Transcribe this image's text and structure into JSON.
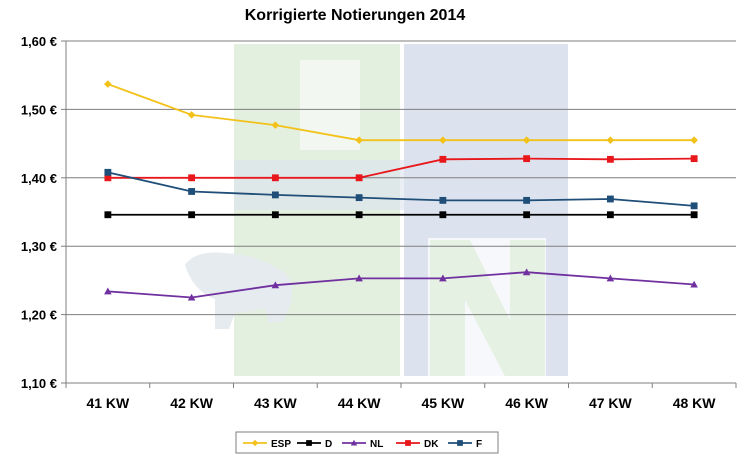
{
  "chart_data": {
    "type": "line",
    "title": "Korrigierte Notierungen 2014",
    "xlabel": "",
    "ylabel": "",
    "categories": [
      "41 KW",
      "42 KW",
      "43 KW",
      "44 KW",
      "45 KW",
      "46 KW",
      "47 KW",
      "48 KW"
    ],
    "ylim": [
      1.1,
      1.6
    ],
    "yticks": [
      1.1,
      1.2,
      1.3,
      1.4,
      1.5,
      1.6
    ],
    "ytick_labels": [
      "1,10 €",
      "1,20 €",
      "1,30 €",
      "1,40 €",
      "1,50 €",
      "1,60 €"
    ],
    "grid": true,
    "legend_position": "bottom",
    "series": [
      {
        "name": "ESP",
        "color": "#F2C21B",
        "marker": "diamond",
        "values": [
          1.537,
          1.492,
          1.477,
          1.455,
          1.455,
          1.455,
          1.455,
          1.455
        ]
      },
      {
        "name": "D",
        "color": "#000000",
        "marker": "square",
        "values": [
          1.346,
          1.346,
          1.346,
          1.346,
          1.346,
          1.346,
          1.346,
          1.346
        ]
      },
      {
        "name": "NL",
        "color": "#7030A0",
        "marker": "triangle",
        "values": [
          1.234,
          1.225,
          1.243,
          1.253,
          1.253,
          1.262,
          1.253,
          1.244
        ]
      },
      {
        "name": "DK",
        "color": "#E8171B",
        "marker": "square",
        "values": [
          1.4,
          1.4,
          1.4,
          1.4,
          1.427,
          1.428,
          1.427,
          1.428
        ]
      },
      {
        "name": "F",
        "color": "#1F4E79",
        "marker": "square",
        "values": [
          1.408,
          1.38,
          1.375,
          1.371,
          1.367,
          1.367,
          1.369,
          1.359
        ]
      }
    ]
  }
}
